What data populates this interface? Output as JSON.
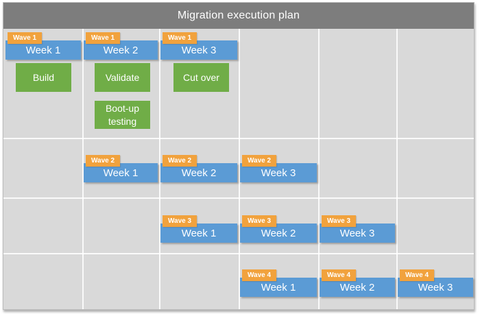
{
  "title": "Migration execution plan",
  "palette": {
    "title_bg": "#7D7D7D",
    "grid_bg": "#D9D9D9",
    "gridline": "#FFFFFF",
    "bar_blue": "#5B9BD5",
    "badge_orange": "#F1A23D",
    "task_green": "#70AD47",
    "text": "#FFFFFF"
  },
  "waves": [
    {
      "badge": "Wave 1",
      "weeks": [
        {
          "label": "Week 1"
        },
        {
          "label": "Week 2"
        },
        {
          "label": "Week 3"
        }
      ],
      "tasks": [
        {
          "label": "Build"
        },
        {
          "label": "Validate"
        },
        {
          "label": "Cut over"
        },
        {
          "label": "Boot-up testing"
        }
      ]
    },
    {
      "badge": "Wave 2",
      "weeks": [
        {
          "label": "Week 1"
        },
        {
          "label": "Week 2"
        },
        {
          "label": "Week 3"
        }
      ],
      "tasks": []
    },
    {
      "badge": "Wave 3",
      "weeks": [
        {
          "label": "Week 1"
        },
        {
          "label": "Week 2"
        },
        {
          "label": "Week 3"
        }
      ],
      "tasks": []
    },
    {
      "badge": "Wave 4",
      "weeks": [
        {
          "label": "Week 1"
        },
        {
          "label": "Week 2"
        },
        {
          "label": "Week 3"
        }
      ],
      "tasks": []
    }
  ]
}
